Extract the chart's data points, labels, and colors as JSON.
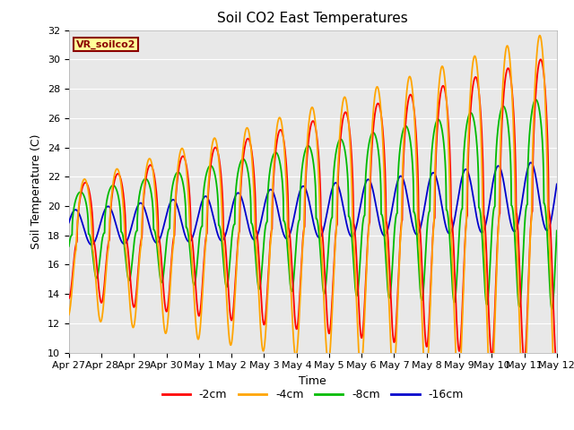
{
  "title": "Soil CO2 East Temperatures",
  "xlabel": "Time",
  "ylabel": "Soil Temperature (C)",
  "ylim": [
    10,
    32
  ],
  "yticks": [
    10,
    12,
    14,
    16,
    18,
    20,
    22,
    24,
    26,
    28,
    30,
    32
  ],
  "label_box_text": "VR_soilco2",
  "colors": {
    "-2cm": "#FF0000",
    "-4cm": "#FFA500",
    "-8cm": "#00BB00",
    "-16cm": "#0000CC"
  },
  "legend_labels": [
    "-2cm",
    "-4cm",
    "-8cm",
    "-16cm"
  ],
  "xtick_labels": [
    "Apr 27",
    "Apr 28",
    "Apr 29",
    "Apr 30",
    "May 1",
    "May 2",
    "May 3",
    "May 4",
    "May 5",
    "May 6",
    "May 7",
    "May 8",
    "May 9",
    "May 10",
    "May 11",
    "May 12"
  ],
  "background_color": "#FFFFFF",
  "plot_bg_color": "#E8E8E8",
  "title_fontsize": 11,
  "axis_label_fontsize": 9,
  "tick_fontsize": 8,
  "figwidth": 6.4,
  "figheight": 4.8,
  "dpi": 100
}
